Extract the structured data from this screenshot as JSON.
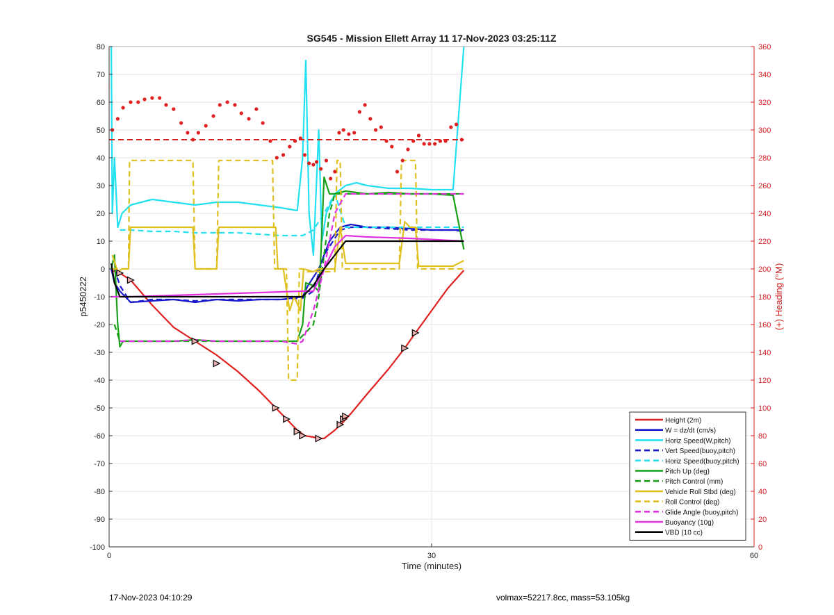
{
  "chart_data": {
    "type": "line",
    "title": "SG545 - Mission Ellett Array 11 17-Nov-2023 03:25:11Z",
    "xlabel": "Time (minutes)",
    "ylabel": "p5450222",
    "y2label": "(+) Heading (°M)",
    "xlim": [
      0,
      60
    ],
    "ylim": [
      -100,
      80
    ],
    "y2lim": [
      0,
      360
    ],
    "x_ticks": [
      "0",
      "30",
      "60"
    ],
    "y_ticks": [
      "80",
      "70",
      "60",
      "50",
      "40",
      "30",
      "20",
      "10",
      "0",
      "-10",
      "-20",
      "-30",
      "-40",
      "-50",
      "-60",
      "-70",
      "-80",
      "-90",
      "-100"
    ],
    "y2_ticks": [
      "360",
      "340",
      "320",
      "300",
      "280",
      "260",
      "240",
      "220",
      "200",
      "180",
      "160",
      "140",
      "120",
      "100",
      "80",
      "60",
      "40",
      "20",
      "0"
    ],
    "grid": "vertical-x-and-horizontal",
    "legend_position": "bottom-right",
    "series": [
      {
        "name": "Height (2m)",
        "style": "solid",
        "color": "#e02020",
        "x": [
          0.2,
          1,
          2,
          4,
          6,
          8,
          10,
          12,
          14,
          15.5,
          16.5,
          17.5,
          18.2,
          19,
          19.5,
          20,
          21,
          21.8,
          22.5,
          24,
          26,
          27.5,
          28.5,
          30,
          31.5,
          33
        ],
        "y": [
          -0.5,
          -1.5,
          -4,
          -13,
          -21,
          -26,
          -31,
          -37,
          -44,
          -50,
          -54,
          -58,
          -60,
          -60.5,
          -61,
          -61,
          -58,
          -55,
          -52,
          -45,
          -36,
          -28.5,
          -23,
          -15,
          -7,
          -0.5
        ]
      },
      {
        "name": "W = dz/dt (cm/s)",
        "style": "solid",
        "color": "#1a1acc",
        "x": [
          0.2,
          0.5,
          1,
          2,
          4,
          6,
          8,
          10,
          12,
          14,
          16,
          18,
          18.5,
          19.5,
          20.5,
          21.5,
          22.5,
          24,
          26,
          28,
          30,
          32,
          33
        ],
        "y": [
          0,
          -5,
          -8,
          -12,
          -11.5,
          -11,
          -12,
          -11,
          -11.5,
          -11,
          -11,
          -10,
          -6,
          0,
          10,
          15,
          16,
          15,
          15,
          14.5,
          14,
          14,
          14
        ]
      },
      {
        "name": "Horiz Speed(W,pitch)",
        "style": "solid",
        "color": "#22e0f0",
        "x": [
          0.2,
          0.3,
          0.5,
          0.8,
          1.2,
          2,
          4,
          6,
          8,
          10,
          12,
          14,
          16,
          17.5,
          18,
          18.3,
          18.6,
          19,
          19.5,
          19.8,
          20.2,
          21,
          22,
          23,
          24,
          26,
          28,
          30,
          32,
          33
        ],
        "y": [
          80,
          20,
          40,
          15,
          20,
          23,
          25,
          24,
          23,
          24,
          24,
          23,
          22,
          21,
          40,
          75,
          20,
          5,
          50,
          10,
          20,
          27,
          30,
          31,
          30,
          29,
          29,
          28.5,
          28.5,
          80
        ]
      },
      {
        "name": "Vert Speed(buoy,pitch)",
        "style": "dashed",
        "color": "#1a1acc",
        "x": [
          0.5,
          1,
          2,
          4,
          6,
          8,
          10,
          12,
          14,
          16,
          18,
          19,
          20,
          21.5,
          22.5,
          24,
          26,
          28,
          30,
          32,
          33
        ],
        "y": [
          0,
          -6,
          -12,
          -11,
          -11,
          -11.5,
          -11,
          -11,
          -11,
          -11,
          -10.5,
          -8,
          5,
          14,
          15,
          15,
          14.5,
          14,
          14,
          14,
          13.5
        ]
      },
      {
        "name": "Horiz Speed(buoy,pitch)",
        "style": "dashed",
        "color": "#22e0f0",
        "x": [
          1,
          2,
          4,
          6,
          8,
          10,
          12,
          14,
          16,
          18,
          19,
          20,
          21,
          22,
          24,
          26,
          28,
          30,
          32,
          33
        ],
        "y": [
          14,
          14,
          13.5,
          13.5,
          13,
          13,
          13,
          12.5,
          12,
          12,
          14,
          20,
          27,
          15,
          15,
          15,
          15,
          15,
          15,
          15
        ]
      },
      {
        "name": "Pitch Up (deg)",
        "style": "solid",
        "color": "#18a018",
        "x": [
          0.2,
          0.5,
          0.8,
          1,
          1.3,
          2,
          4,
          6,
          8,
          10,
          12,
          14,
          16,
          17.5,
          18,
          18.3,
          19,
          19.5,
          19.7,
          20,
          20.5,
          21,
          22,
          24,
          26,
          28,
          30,
          32,
          33
        ],
        "y": [
          0,
          5,
          -20,
          -28,
          -26,
          -26,
          -26,
          -26,
          -25.5,
          -26,
          -26,
          -26,
          -26,
          -26,
          -20,
          -5,
          -6,
          -8,
          5,
          33,
          27,
          27,
          28,
          27,
          27.5,
          27,
          27,
          26.5,
          7
        ]
      },
      {
        "name": "Pitch Control (mm)",
        "style": "dashed",
        "color": "#18a018",
        "x": [
          0.5,
          1,
          2,
          10,
          17.5,
          18,
          19,
          19.5,
          20,
          20.5,
          21,
          22,
          26,
          30,
          33
        ],
        "y": [
          -20,
          -26,
          -26,
          -26,
          -26,
          -24,
          -20,
          -10,
          5,
          20,
          27,
          27,
          27,
          27,
          27
        ]
      },
      {
        "name": "Vehicle Roll Stbd (deg)",
        "style": "solid",
        "color": "#e0c020",
        "x": [
          0.3,
          0.8,
          1.2,
          1.8,
          2,
          4,
          7.8,
          8,
          10,
          10.2,
          15.5,
          15.7,
          16.2,
          16.8,
          17.2,
          17.8,
          18.1,
          19,
          19.5,
          21,
          21.5,
          22,
          24,
          27,
          27.5,
          28,
          28.5,
          28.8,
          30,
          32,
          33
        ],
        "y": [
          5,
          -1,
          0,
          0,
          15,
          15,
          15,
          0,
          0,
          15,
          15,
          0,
          0,
          -15,
          -10,
          -15,
          0,
          -1,
          0,
          0,
          15,
          2,
          2,
          2,
          17,
          15,
          15,
          1,
          1,
          1,
          3
        ]
      },
      {
        "name": "Roll Control (deg)",
        "style": "dashed",
        "color": "#e0c020",
        "x": [
          0.3,
          1.8,
          1.9,
          7.8,
          8,
          10,
          10.2,
          15.2,
          15.4,
          16.5,
          16.7,
          17.5,
          17.7,
          18,
          18.2,
          21,
          21.2,
          21.5,
          21.7,
          27,
          27.2,
          28.5,
          28.7,
          33
        ],
        "y": [
          0,
          0,
          39,
          39,
          0,
          0,
          39,
          39,
          0,
          0,
          -40,
          -40,
          0,
          0,
          -1,
          -1,
          39,
          39,
          0,
          0,
          39,
          39,
          0,
          0
        ]
      },
      {
        "name": "Glide Angle (buoy,pitch)",
        "style": "dashed",
        "color": "#e030e0",
        "x": [
          1,
          2,
          4,
          6,
          8,
          10,
          12,
          14,
          16,
          17.5,
          18,
          19,
          20,
          20.5,
          21,
          22,
          24,
          26,
          28,
          30,
          32,
          33
        ],
        "y": [
          -26,
          -26,
          -26,
          -26,
          -25.5,
          -26,
          -26,
          -26,
          -26,
          -27,
          -26,
          -15,
          0,
          10,
          20,
          27,
          27,
          27,
          27,
          27,
          27,
          27
        ]
      },
      {
        "name": "Buoyancy (10g)",
        "style": "solid",
        "color": "#e030e0",
        "x": [
          0.2,
          1,
          2,
          10,
          18,
          19,
          20,
          21,
          22,
          24,
          28,
          33
        ],
        "y": [
          -10,
          -10,
          -10,
          -9,
          -8,
          -8,
          0,
          8,
          12,
          11.5,
          11,
          10
        ]
      },
      {
        "name": "VBD (10 cc)",
        "style": "solid",
        "color": "#000000",
        "x": [
          0.2,
          0.5,
          1,
          2,
          10,
          18,
          19,
          20,
          21,
          22,
          24,
          28,
          33
        ],
        "y": [
          2,
          -5,
          -10,
          -10,
          -10,
          -10,
          -6,
          0,
          5,
          10,
          10,
          10,
          10
        ]
      }
    ],
    "heading_mean_deg": 293,
    "heading_points_deg": {
      "x": [
        0.3,
        0.8,
        1.3,
        2,
        2.7,
        3.3,
        4,
        4.7,
        5.3,
        6,
        6.7,
        7.3,
        7.8,
        8.3,
        9,
        9.7,
        10.3,
        11,
        11.7,
        12.3,
        13,
        13.7,
        14.3,
        15,
        15.6,
        16.2,
        16.8,
        17.3,
        17.8,
        18.2,
        18.6,
        19,
        19.3,
        19.7,
        20.2,
        20.6,
        21,
        21.4,
        21.8,
        22.3,
        22.8,
        23.3,
        23.8,
        24.3,
        24.8,
        25.3,
        25.8,
        26.3,
        26.8,
        27.3,
        27.8,
        28.3,
        28.8,
        29.3,
        29.8,
        30.3,
        30.8,
        31.3,
        31.8,
        32.3,
        32.8
      ],
      "y": [
        300,
        308,
        316,
        320,
        320,
        322,
        323,
        323,
        318,
        315,
        305,
        298,
        293,
        298,
        303,
        310,
        318,
        320,
        318,
        312,
        308,
        315,
        305,
        292,
        280,
        282,
        288,
        292,
        294,
        282,
        276,
        275,
        277,
        272,
        278,
        265,
        270,
        298,
        300,
        297,
        298,
        313,
        318,
        308,
        300,
        302,
        292,
        288,
        270,
        278,
        286,
        292,
        296,
        290,
        290,
        290,
        292,
        292,
        302,
        304,
        293
      ]
    },
    "heading_arrow_markers": {
      "x": [
        1,
        2,
        8,
        10,
        15.5,
        16.5,
        17.5,
        18,
        19.5,
        21.5,
        21.8,
        22,
        27.5,
        28.5
      ],
      "y": [
        -1.5,
        -4,
        -26,
        -34,
        -50,
        -54,
        -58.5,
        -60,
        -61,
        -56,
        -54,
        -53,
        -28.5,
        -23
      ]
    }
  },
  "footer": {
    "timestamp": "17-Nov-2023 04:10:29",
    "summary": "volmax=52217.8cc, mass=53.105kg"
  }
}
